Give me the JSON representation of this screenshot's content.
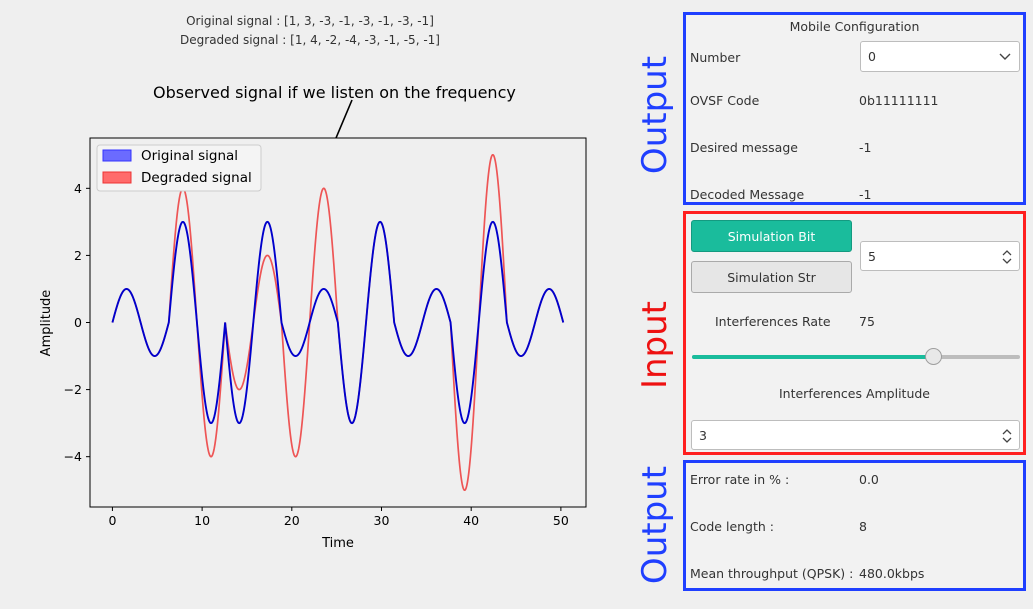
{
  "plot": {
    "signal_text": {
      "original": "Original signal : [1, 3, -3, -1, -3, -1, -3, -1]",
      "degraded": "Degraded signal : [1, 4, -2, -4, -3, -1, -5, -1]"
    },
    "annotation": "Observed signal if we listen on the frequency"
  },
  "chart_data": {
    "type": "line",
    "xlabel": "Time",
    "ylabel": "Amplitude",
    "xlim": [
      -2.5,
      52.8
    ],
    "ylim": [
      -5.5,
      5.5
    ],
    "xticks": [
      0,
      10,
      20,
      30,
      40,
      50
    ],
    "yticks": [
      -4,
      -2,
      0,
      2,
      4
    ],
    "legend_position": "top-left",
    "series": [
      {
        "name": "Original signal",
        "color": "#0000cc",
        "bits": [
          1,
          3,
          -3,
          -1,
          -3,
          -1,
          -3,
          -1
        ],
        "bit_duration": 6.283
      },
      {
        "name": "Degraded signal",
        "color": "#ee5555",
        "bits": [
          1,
          4,
          -2,
          -4,
          -3,
          -1,
          -5,
          -1
        ],
        "bit_duration": 6.283
      }
    ]
  },
  "mobile_config": {
    "title": "Mobile Configuration",
    "number_label": "Number",
    "number_value": "0",
    "ovsf_label": "OVSF Code",
    "ovsf_value": "0b11111111",
    "desired_label": "Desired message",
    "desired_value": "-1",
    "decoded_label": "Decoded Message",
    "decoded_value": "-1"
  },
  "input": {
    "sim_bit_label": "Simulation Bit",
    "sim_str_label": "Simulation Str",
    "spin_value": "5",
    "interf_rate_label": "Interferences Rate",
    "interf_rate_value": "75",
    "slider_fraction": 0.75,
    "interf_amp_label": "Interferences Amplitude",
    "interf_amp_value": "3"
  },
  "results": {
    "error_label": "Error rate in %  :",
    "error_value": "0.0",
    "code_label": "Code length :",
    "code_value": "8",
    "throughput_label": "Mean throughput (QPSK) :",
    "throughput_value": "480.0kbps"
  },
  "side_labels": {
    "output_top": "Output",
    "input": "Input",
    "output_bottom": "Output"
  },
  "colors": {
    "output_border": "#1f3fff",
    "input_border": "#ff1f1f",
    "output_text": "#1f3fff",
    "input_text": "#ee1111",
    "primary_button": "#1abc9c"
  }
}
